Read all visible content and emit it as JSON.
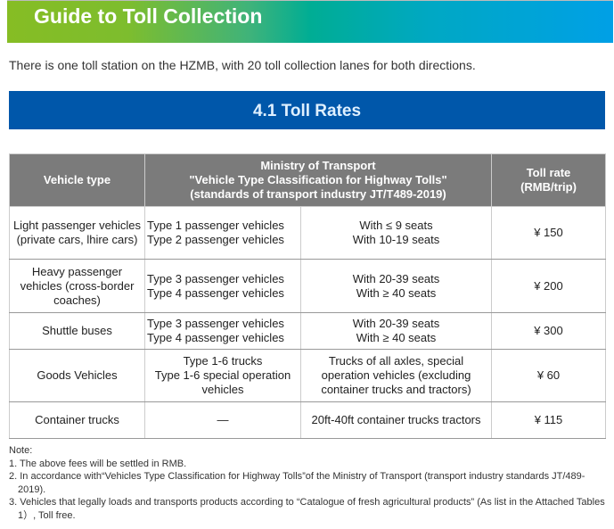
{
  "banner_title": "Guide to Toll Collection",
  "intro": "There is one toll station on the HZMB, with 20 toll collection lanes for both directions.",
  "section_title": "4.1 Toll Rates",
  "table": {
    "headers": {
      "vehicle_type": "Vehicle type",
      "ministry": [
        "Ministry of Transport",
        "\"Vehicle Type Classification for Highway Tolls\"",
        "(standards of transport industry JT/T489-2019)"
      ],
      "toll_rate": [
        "Toll rate",
        "(RMB/trip)"
      ]
    },
    "rows": [
      {
        "vehicle": "Light passenger vehicles (private cars, lhire cars)",
        "types": [
          "Type 1 passenger vehicles",
          "Type 2 passenger vehicles"
        ],
        "specs": [
          "With ≤ 9 seats",
          "With 10-19 seats"
        ],
        "rate": "¥ 150"
      },
      {
        "vehicle": "Heavy passenger vehicles (cross-border coaches)",
        "types": [
          "Type 3 passenger vehicles",
          "Type 4 passenger vehicles"
        ],
        "specs": [
          "With 20-39 seats",
          "With ≥ 40 seats"
        ],
        "rate": "¥ 200"
      },
      {
        "vehicle": "Shuttle buses",
        "types": [
          "Type 3 passenger vehicles",
          "Type 4 passenger vehicles"
        ],
        "specs": [
          "With 20-39 seats",
          "With ≥ 40 seats"
        ],
        "rate": "¥ 300"
      },
      {
        "vehicle": "Goods Vehicles",
        "types": [
          "Type 1-6 trucks",
          "Type 1-6 special operation vehicles"
        ],
        "specs": [
          "Trucks of all axles, special operation vehicles (excluding container trucks and tractors)"
        ],
        "rate": "¥ 60"
      },
      {
        "vehicle": "Container trucks",
        "types": [
          "—"
        ],
        "specs": [
          "20ft-40ft container trucks tractors"
        ],
        "rate": "¥ 115"
      }
    ]
  },
  "notes": {
    "label": "Note:",
    "items": [
      "1. The above fees will be settled in RMB.",
      "2. In accordance with“Vehicles Type Classification for Highway Tolls”of the Ministry of Transport (transport industry standards JT/489-2019).",
      "3. Vehicles that legally loads and transports products according to “Catalogue of fresh agricultural products” (As list in the Attached Tables 1）, Toll free."
    ]
  }
}
